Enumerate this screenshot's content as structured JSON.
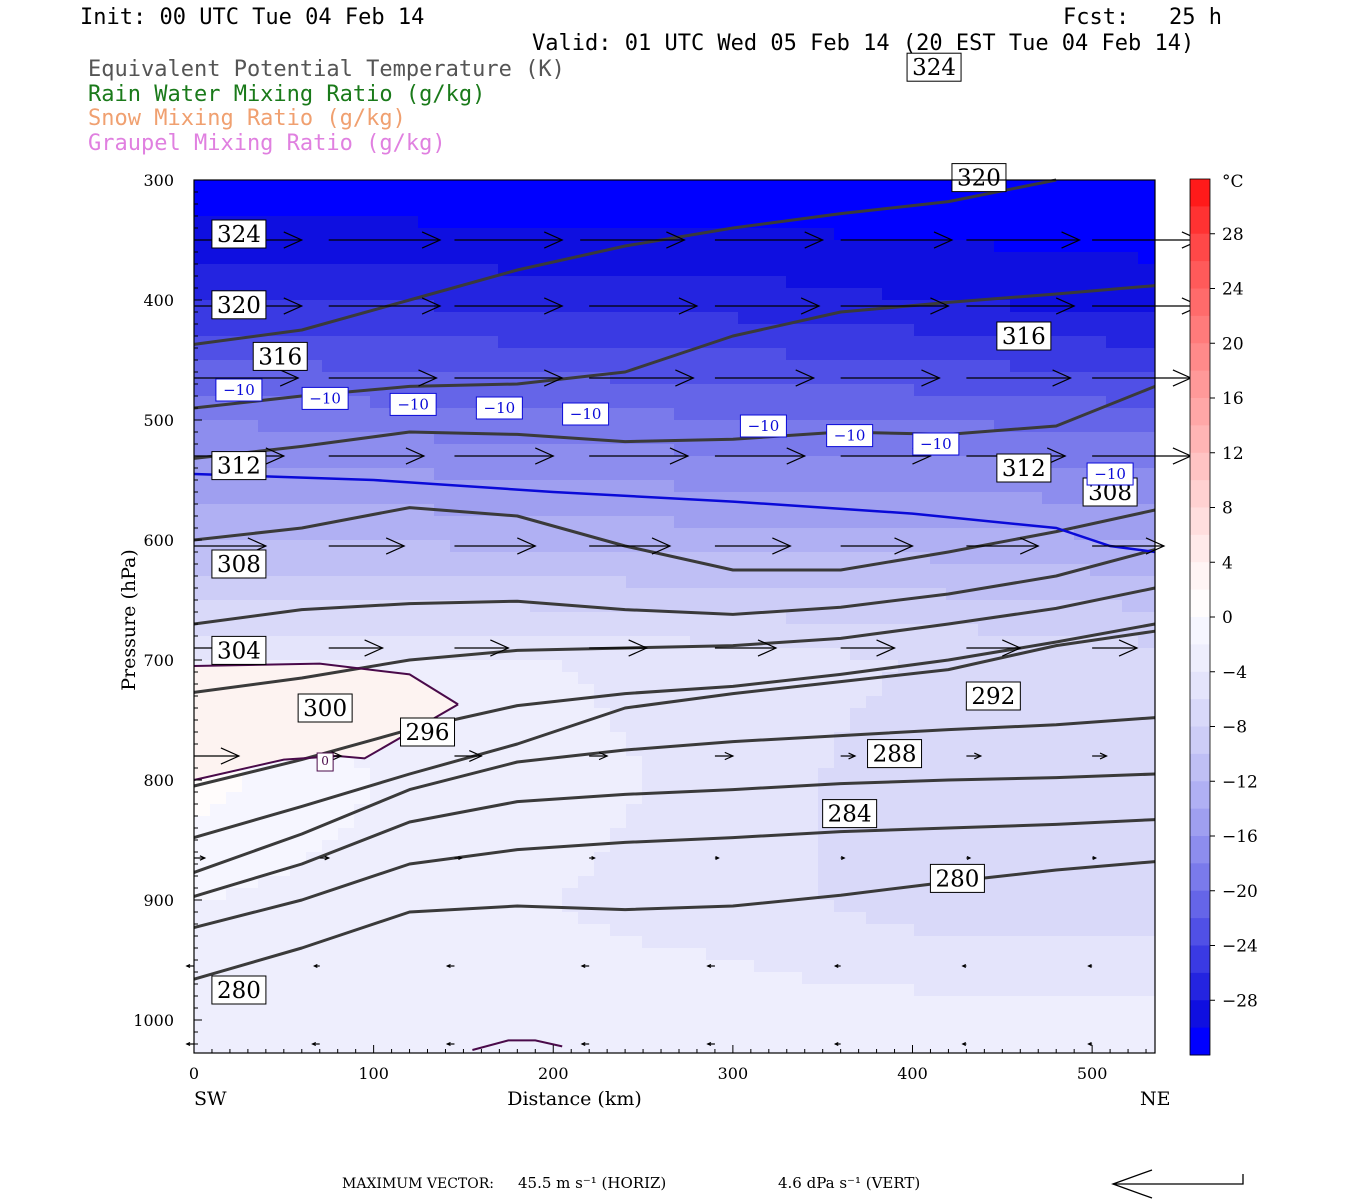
{
  "header": {
    "init": "Init: 00 UTC Tue 04 Feb 14",
    "fcst": "Fcst:   25 h",
    "valid": "Valid: 01 UTC Wed 05 Feb 14 (20 EST Tue 04 Feb 14)",
    "fields": [
      {
        "label": "Equivalent Potential Temperature (K)",
        "color": "#555555"
      },
      {
        "label": "Rain Water Mixing Ratio (g/kg)",
        "color": "#1a7a1a"
      },
      {
        "label": "Snow Mixing Ratio (g/kg)",
        "color": "#f0a070"
      },
      {
        "label": "Graupel Mixing Ratio (g/kg)",
        "color": "#e080e0"
      }
    ]
  },
  "footer": {
    "max_vector_label": "MAXIMUM VECTOR:",
    "horiz": "45.5 m s⁻¹ (HORIZ)",
    "vert": "4.6 dPa s⁻¹ (VERT)"
  },
  "chart_data": {
    "type": "cross-section",
    "xlabel": "Distance (km)",
    "ylabel": "Pressure (hPa)",
    "xlim": [
      0,
      535
    ],
    "ylim": [
      1030,
      300
    ],
    "x_ticks": [
      0,
      100,
      200,
      300,
      400,
      500
    ],
    "y_ticks": [
      300,
      400,
      500,
      600,
      700,
      800,
      900,
      1000
    ],
    "left_end_label": "SW",
    "right_end_label": "NE",
    "colorbar": {
      "unit": "°C",
      "tick_labels": [
        "28",
        "24",
        "20",
        "16",
        "12",
        "8",
        "4",
        "0",
        "−4",
        "−8",
        "−12",
        "−16",
        "−20",
        "−24",
        "−28"
      ],
      "levels": [
        32,
        30,
        28,
        26,
        24,
        22,
        20,
        18,
        16,
        14,
        12,
        10,
        8,
        6,
        4,
        2,
        0,
        -2,
        -4,
        -6,
        -8,
        -10,
        -12,
        -14,
        -16,
        -18,
        -20,
        -22,
        -24,
        -26,
        -28,
        -30,
        -32
      ],
      "colors": [
        "#ff1a1a",
        "#ff3232",
        "#ff4848",
        "#ff5a5a",
        "#ff6b6b",
        "#ff7b7b",
        "#ff8a8a",
        "#ff9999",
        "#ffa7a7",
        "#ffb5b5",
        "#ffc3c3",
        "#ffd1d1",
        "#ffdede",
        "#ffeaea",
        "#fff4f4",
        "#fffcfc",
        "#f6f6ff",
        "#eeeefd",
        "#e4e4fb",
        "#d9d9f9",
        "#cdcdf7",
        "#bfbff5",
        "#b0b0f3",
        "#9f9ff0",
        "#8d8dee",
        "#7a7aeb",
        "#6565e8",
        "#5050e6",
        "#3a3ae3",
        "#2424e0",
        "#0f0fe0",
        "#0000ff"
      ]
    },
    "temperature_field": {
      "x": [
        0,
        100,
        200,
        300,
        400,
        535
      ],
      "p": [
        300,
        400,
        500,
        600,
        700,
        800,
        900,
        1000
      ],
      "values": [
        [
          -32,
          -32,
          -32,
          -32,
          -32,
          -32
        ],
        [
          -26,
          -26,
          -27,
          -27,
          -28,
          -29
        ],
        [
          -18,
          -19,
          -19,
          -20,
          -20,
          -21
        ],
        [
          -12,
          -12,
          -13,
          -13,
          -13,
          -14
        ],
        [
          -4,
          -4,
          -4,
          -5,
          -6,
          -7
        ],
        [
          1,
          -2,
          -3,
          -5,
          -7,
          -7
        ],
        [
          -2,
          -3,
          -4,
          -5,
          -7,
          -7
        ],
        [
          -2,
          -2,
          -3,
          -3,
          -3,
          -3
        ]
      ]
    },
    "theta_e_contours": [
      {
        "level": 280,
        "x": [
          0,
          60,
          120,
          180,
          240,
          300,
          360,
          420,
          480,
          535
        ],
        "p": [
          966,
          940,
          910,
          905,
          908,
          905,
          896,
          885,
          875,
          868
        ],
        "labels": [
          [
            25,
            975
          ],
          [
            425,
            882
          ]
        ]
      },
      {
        "level": 284,
        "x": [
          0,
          60,
          120,
          180,
          240,
          300,
          360,
          420,
          480,
          535
        ],
        "p": [
          923,
          900,
          870,
          858,
          852,
          848,
          843,
          840,
          837,
          833
        ],
        "labels": [
          [
            365,
            828
          ]
        ]
      },
      {
        "level": 288,
        "x": [
          0,
          60,
          120,
          180,
          240,
          300,
          360,
          420,
          480,
          535
        ],
        "p": [
          897,
          870,
          835,
          818,
          812,
          808,
          803,
          800,
          798,
          795
        ],
        "labels": [
          [
            390,
            778
          ]
        ]
      },
      {
        "level": 292,
        "x": [
          0,
          60,
          120,
          180,
          240,
          300,
          360,
          420,
          480,
          535
        ],
        "p": [
          877,
          845,
          808,
          785,
          775,
          768,
          763,
          758,
          754,
          748
        ],
        "labels": [
          [
            445,
            730
          ]
        ]
      },
      {
        "level": 296,
        "x": [
          0,
          60,
          120,
          180,
          240,
          300,
          360,
          420,
          480,
          535
        ],
        "p": [
          848,
          822,
          795,
          770,
          740,
          728,
          718,
          708,
          688,
          676
        ],
        "labels": [
          [
            130,
            760
          ]
        ]
      },
      {
        "level": 300,
        "x": [
          0,
          60,
          120,
          180,
          240,
          300,
          360,
          420,
          480,
          535
        ],
        "p": [
          805,
          783,
          758,
          738,
          728,
          722,
          712,
          700,
          685,
          670
        ],
        "labels": [
          [
            73,
            740
          ]
        ]
      },
      {
        "level": 304,
        "x": [
          0,
          60,
          120,
          180,
          240,
          300,
          360,
          420,
          480,
          535
        ],
        "p": [
          727,
          715,
          700,
          692,
          690,
          688,
          682,
          670,
          657,
          640
        ],
        "labels": [
          [
            25,
            692
          ]
        ]
      },
      {
        "level": 308,
        "x": [
          0,
          60,
          120,
          180,
          240,
          300,
          360,
          420,
          480,
          535
        ],
        "p": [
          670,
          658,
          653,
          651,
          658,
          662,
          656,
          645,
          630,
          608
        ],
        "labels": [
          [
            25,
            620
          ],
          [
            510,
            560
          ]
        ]
      },
      {
        "level": 312,
        "x": [
          0,
          60,
          120,
          180,
          240,
          300,
          360,
          420,
          480,
          535
        ],
        "p": [
          600,
          590,
          573,
          580,
          605,
          625,
          625,
          610,
          593,
          575
        ],
        "labels": [
          [
            25,
            538
          ],
          [
            462,
            540
          ]
        ]
      },
      {
        "level": 316,
        "x": [
          0,
          60,
          120,
          180,
          240,
          300,
          360,
          420,
          480,
          535
        ],
        "p": [
          532,
          522,
          510,
          512,
          518,
          516,
          510,
          512,
          505,
          472
        ],
        "labels": [
          [
            48,
            447
          ],
          [
            462,
            430
          ]
        ]
      },
      {
        "level": 320,
        "x": [
          0,
          60,
          120,
          180,
          240,
          300,
          360,
          420,
          480,
          535
        ],
        "p": [
          490,
          480,
          472,
          470,
          460,
          430,
          410,
          402,
          395,
          388
        ],
        "labels": [
          [
            25,
            404
          ],
          [
            437,
            298
          ]
        ]
      },
      {
        "level": 324,
        "x": [
          0,
          60,
          120,
          180,
          240,
          300,
          360,
          420,
          480
        ],
        "p": [
          437,
          425,
          400,
          375,
          355,
          340,
          328,
          318,
          300
        ],
        "labels": [
          [
            25,
            345
          ],
          [
            412,
            206
          ]
        ]
      }
    ],
    "isotherm_minus10": {
      "label": "−10",
      "x": [
        0,
        100,
        200,
        300,
        400,
        480,
        510,
        535
      ],
      "p": [
        545,
        550,
        560,
        568,
        578,
        590,
        605,
        610
      ],
      "labels": [
        [
          25,
          475
        ],
        [
          73,
          482
        ],
        [
          122,
          487
        ],
        [
          170,
          490
        ],
        [
          218,
          495
        ],
        [
          317,
          505
        ],
        [
          365,
          513
        ],
        [
          413,
          520
        ],
        [
          510,
          545
        ]
      ]
    },
    "zero_isotherm": {
      "label": "0",
      "upper": {
        "x": [
          0,
          70,
          120,
          147
        ],
        "p": [
          705,
          703,
          712,
          737
        ]
      },
      "lower": {
        "x": [
          0,
          50,
          80,
          95,
          147
        ],
        "p": [
          800,
          783,
          780,
          782,
          737
        ]
      },
      "surface": {
        "x": [
          155,
          175,
          190,
          205
        ],
        "p": [
          1025,
          1017,
          1017,
          1022
        ]
      }
    },
    "wind_vectors": [
      {
        "p": 350,
        "x": [
          0,
          75,
          145,
          215,
          290,
          360,
          430,
          500
        ],
        "len_km": [
          60,
          62,
          60,
          58,
          60,
          62,
          63,
          60
        ]
      },
      {
        "p": 405,
        "x": [
          0,
          75,
          145,
          220,
          290,
          360,
          430,
          500
        ],
        "len_km": [
          60,
          62,
          60,
          60,
          58,
          60,
          60,
          60
        ]
      },
      {
        "p": 465,
        "x": [
          0,
          75,
          145,
          220,
          290,
          360,
          430,
          500
        ],
        "len_km": [
          58,
          60,
          60,
          58,
          55,
          55,
          58,
          55
        ]
      },
      {
        "p": 530,
        "x": [
          0,
          75,
          145,
          220,
          290,
          360,
          430,
          500
        ],
        "len_km": [
          50,
          53,
          55,
          55,
          50,
          50,
          55,
          55
        ]
      },
      {
        "p": 605,
        "x": [
          0,
          75,
          145,
          220,
          290,
          360,
          430,
          500
        ],
        "len_km": [
          40,
          42,
          45,
          45,
          42,
          40,
          40,
          40
        ]
      },
      {
        "p": 690,
        "x": [
          0,
          75,
          145,
          220,
          290,
          360,
          430,
          500
        ],
        "len_km": [
          25,
          30,
          30,
          32,
          34,
          30,
          30,
          25
        ]
      },
      {
        "p": 780,
        "x": [
          0,
          70,
          145,
          220,
          290,
          360,
          430,
          500
        ],
        "len_km": [
          25,
          12,
          15,
          10,
          10,
          8,
          8,
          8
        ]
      },
      {
        "p": 865,
        "x": [
          0,
          70,
          145,
          220,
          290,
          360,
          430,
          500
        ],
        "len_km": [
          6,
          5,
          4,
          3,
          2,
          2,
          2,
          2
        ]
      },
      {
        "p": 955,
        "x": [
          0,
          70,
          145,
          220,
          290,
          360,
          430,
          500
        ],
        "len_km": [
          -4,
          -3,
          -4,
          -4,
          -4,
          -3,
          -2,
          -2
        ]
      },
      {
        "p": 1020,
        "x": [
          0,
          70,
          145,
          220,
          290,
          360,
          430,
          500
        ],
        "len_km": [
          -4,
          -4,
          -4,
          -4,
          -4,
          -3,
          -2,
          -2
        ]
      }
    ]
  }
}
